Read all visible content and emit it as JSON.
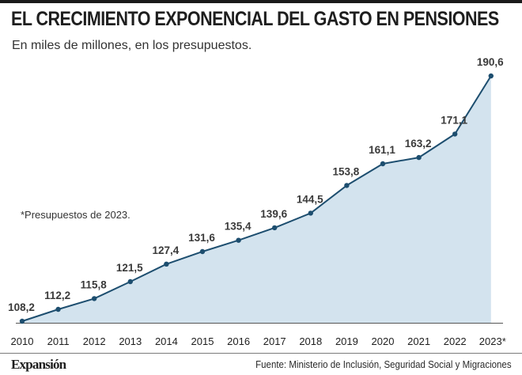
{
  "header": {
    "title": "EL CRECIMIENTO EXPONENCIAL DEL GASTO EN PENSIONES",
    "subtitle": "En miles de millones, en los presupuestos."
  },
  "note": "*Presupuestos de 2023.",
  "footer": {
    "logo": "Expansión",
    "source": "Fuente: Ministerio de Inclusión, Seguridad Social y Migraciones"
  },
  "colors": {
    "area_fill": "#d3e3ee",
    "line": "#1d4e6f",
    "point": "#1d4e6f",
    "baseline": "#555555"
  },
  "chart_data": {
    "type": "area",
    "title": "EL CRECIMIENTO EXPONENCIAL DEL GASTO EN PENSIONES",
    "subtitle": "En miles de millones, en los presupuestos.",
    "xlabel": "",
    "ylabel": "",
    "categories": [
      "2010",
      "2011",
      "2012",
      "2013",
      "2014",
      "2015",
      "2016",
      "2017",
      "2018",
      "2019",
      "2020",
      "2021",
      "2022",
      "2023*"
    ],
    "value_labels": [
      "108,2",
      "112,2",
      "115,8",
      "121,5",
      "127,4",
      "131,6",
      "135,4",
      "139,6",
      "144,5",
      "153,8",
      "161,1",
      "163,2",
      "171,1",
      "190,6"
    ],
    "series": [
      {
        "values": [
          108.2,
          112.2,
          115.8,
          121.5,
          127.4,
          131.6,
          135.4,
          139.6,
          144.5,
          153.8,
          161.1,
          163.2,
          171.1,
          190.6
        ]
      }
    ],
    "grid": false,
    "legend": "none"
  }
}
